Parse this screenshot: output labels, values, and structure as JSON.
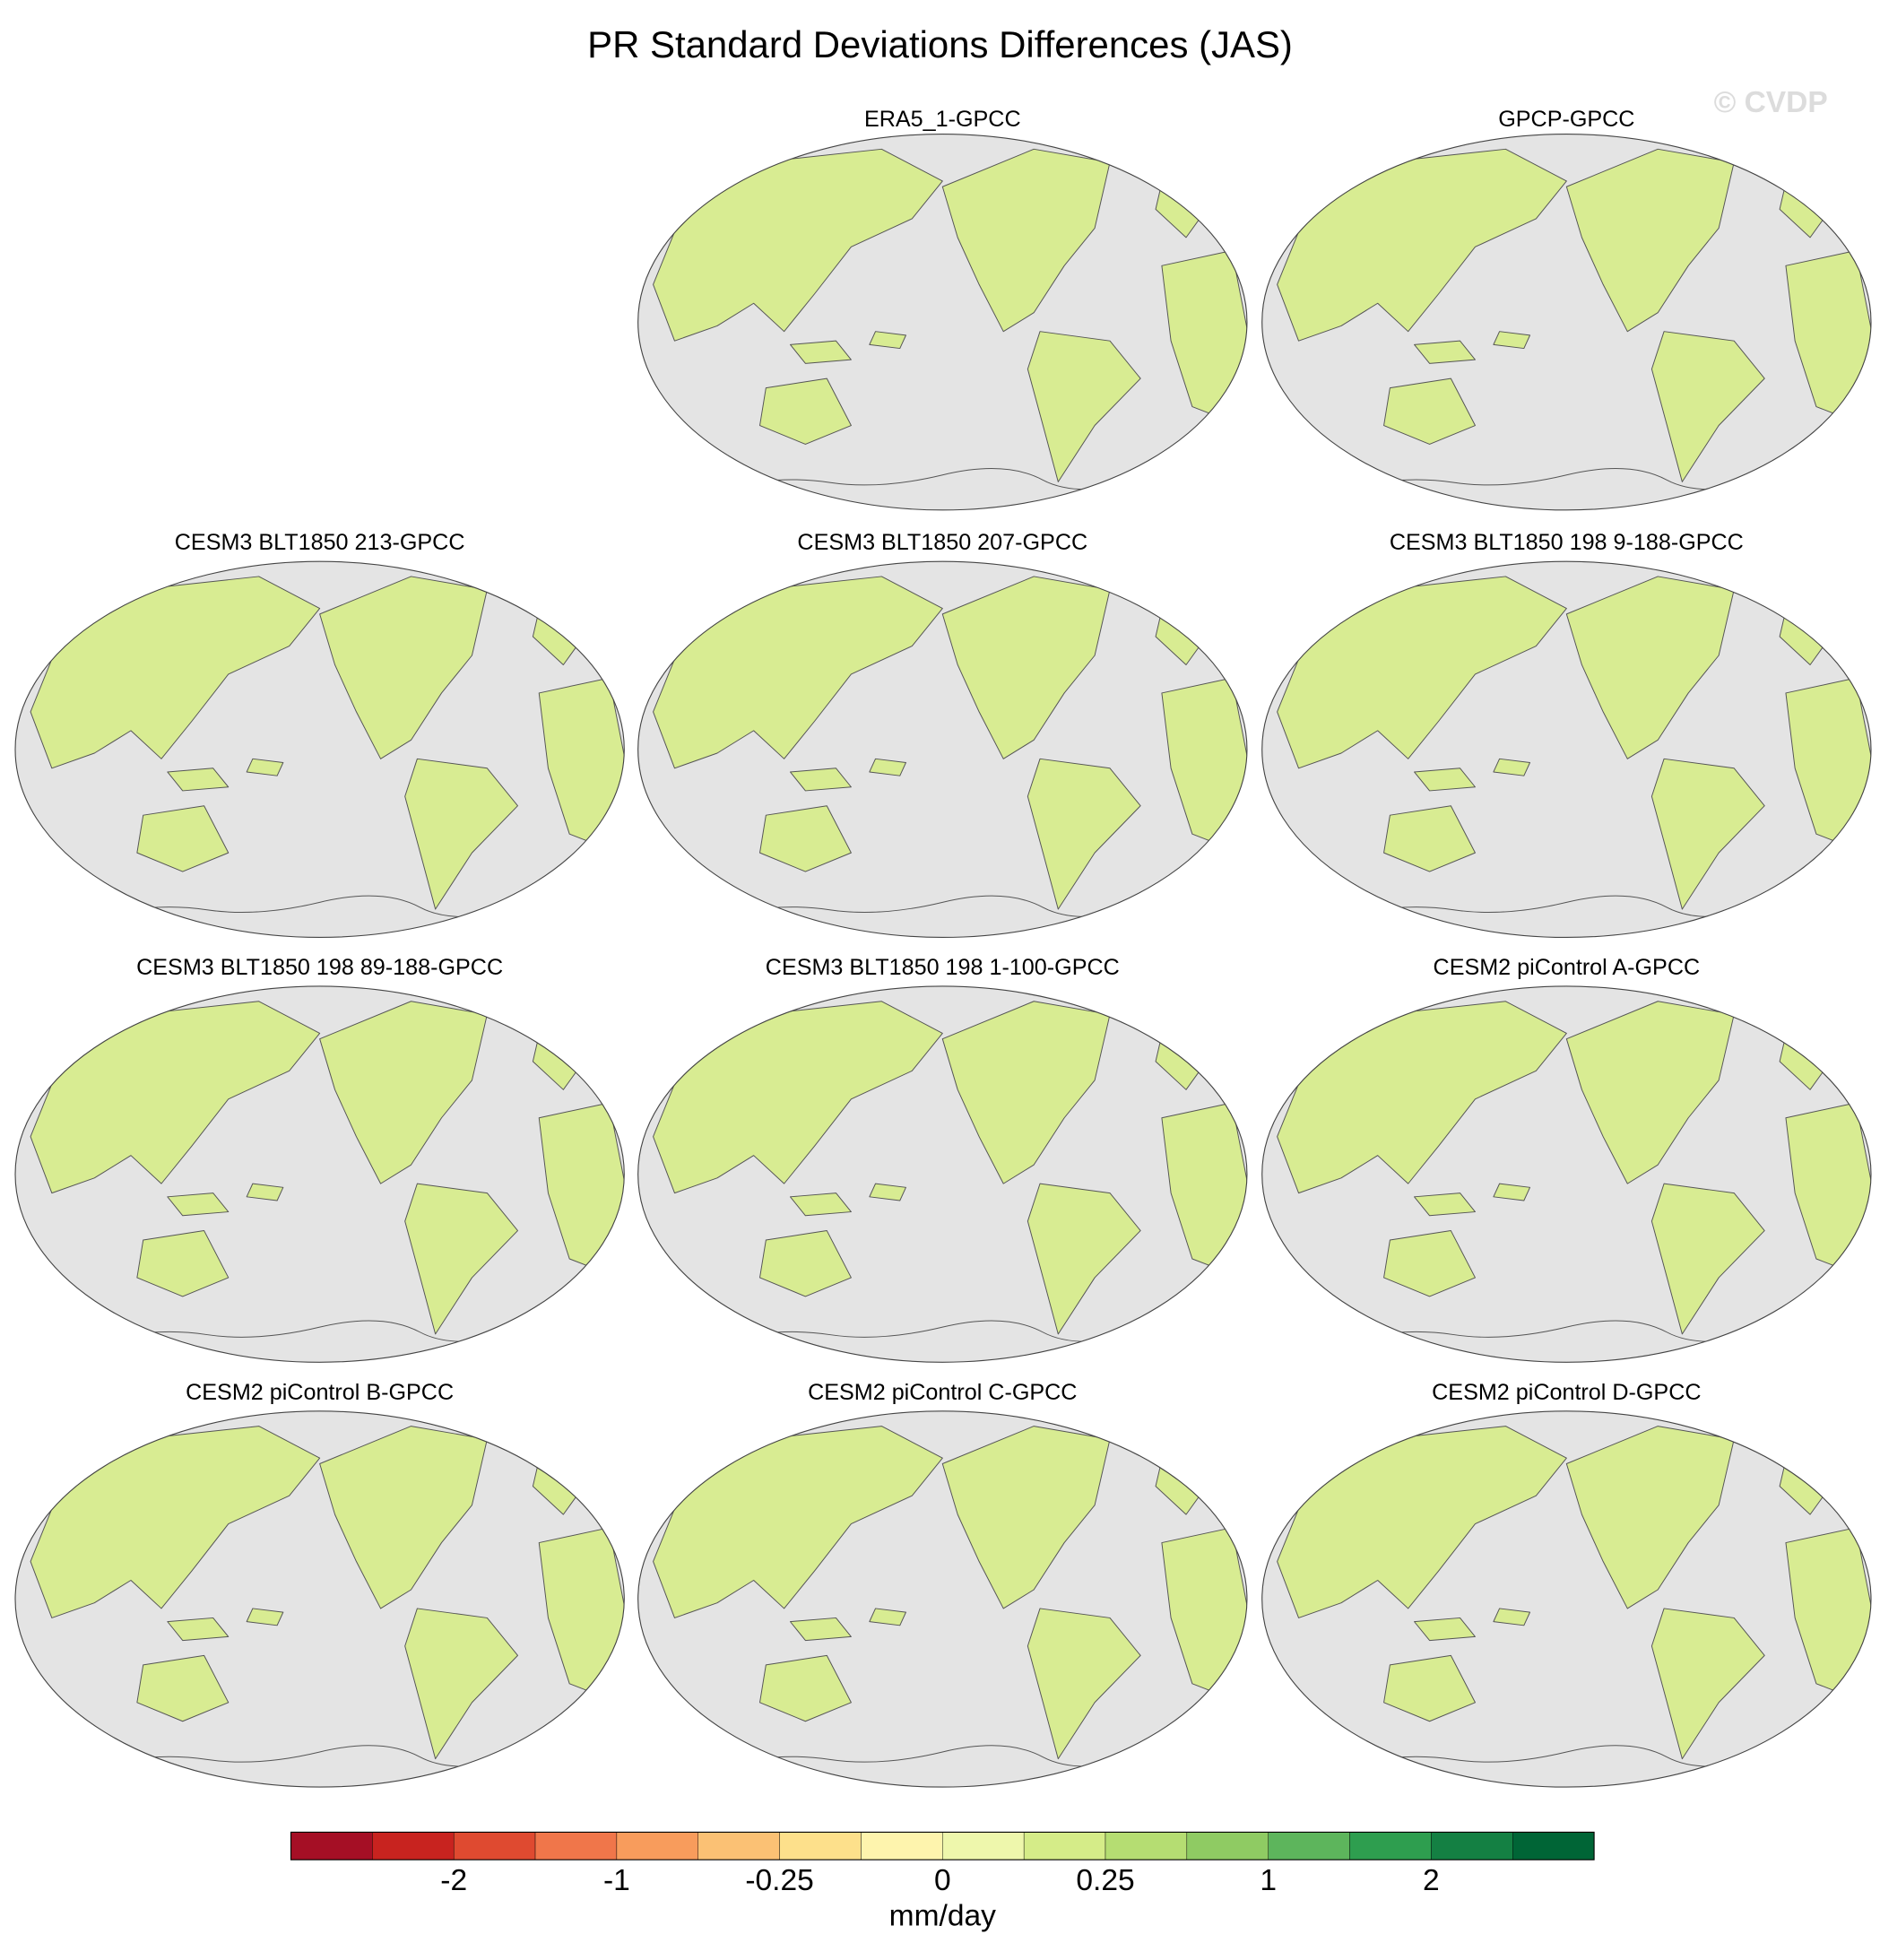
{
  "title": "PR Standard Deviations Differences (JAS)",
  "watermark": "© CVDP",
  "panels": [
    {
      "title": "ERA5_1-GPCC"
    },
    {
      "title": "GPCP-GPCC"
    },
    {
      "title": "CESM3 BLT1850 213-GPCC"
    },
    {
      "title": "CESM3 BLT1850 207-GPCC"
    },
    {
      "title": "CESM3 BLT1850 198 9-188-GPCC"
    },
    {
      "title": "CESM3 BLT1850 198 89-188-GPCC"
    },
    {
      "title": "CESM3 BLT1850 198 1-100-GPCC"
    },
    {
      "title": "CESM2 piControl A-GPCC"
    },
    {
      "title": "CESM2 piControl B-GPCC"
    },
    {
      "title": "CESM2 piControl C-GPCC"
    },
    {
      "title": "CESM2 piControl D-GPCC"
    }
  ],
  "colorbar": {
    "colors": [
      "#a50f25",
      "#c8231f",
      "#df4a30",
      "#f0764a",
      "#f89c5c",
      "#fbc174",
      "#fde08b",
      "#fef4ad",
      "#eef7ac",
      "#d5ec88",
      "#b5dd72",
      "#8fcb63",
      "#5db55c",
      "#2e9e4f",
      "#148043",
      "#006536"
    ],
    "labels": [
      "-2",
      "-1",
      "-0.25",
      "0",
      "0.25",
      "1",
      "2"
    ],
    "units": "mm/day"
  }
}
